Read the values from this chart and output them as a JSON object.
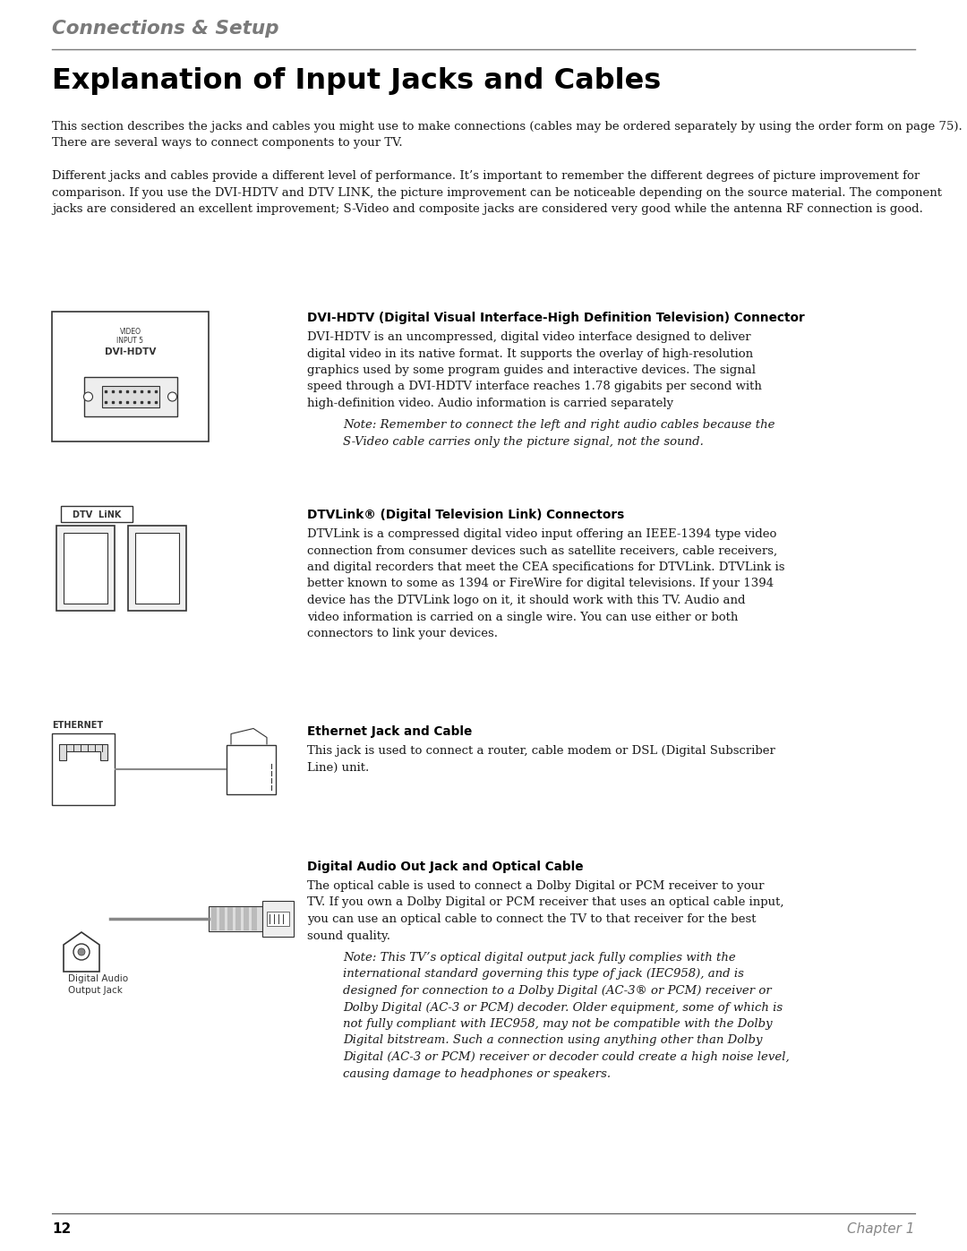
{
  "bg_color": "#ffffff",
  "header_color": "#7a7a7a",
  "header_text": "Connections & Setup",
  "page_num": "12",
  "chapter_text": "Chapter 1",
  "title": "Explanation of Input Jacks and Cables",
  "para1": "This section describes the jacks and cables you might use to make connections (cables may be ordered separately by using the order form on page 75). There are several ways to connect components to your TV.",
  "para2": "Different jacks and cables provide a different level of performance. It’s important to remember the different degrees of picture improvement for comparison. If you use the DVI-HDTV and DTV LINK, the picture improvement can be noticeable depending on the source material. The component jacks are considered an excellent improvement; S-Video and composite jacks are considered very good while the antenna RF connection is good.",
  "section1_title": "DVI-HDTV (Digital Visual Interface-High Definition Television) Connector",
  "section1_body": "DVI-HDTV is an uncompressed, digital video interface designed to deliver\ndigital video in its native format. It supports the overlay of high-resolution\ngraphics used by some program guides and interactive devices. The signal\nspeed through a DVI-HDTV interface reaches 1.78 gigabits per second with\nhigh-definition video. Audio information is carried separately",
  "section1_note": "Note: Remember to connect the left and right audio cables because the\nS-Video cable carries only the picture signal, not the sound.",
  "section2_title": "DTVLink® (Digital Television Link) Connectors",
  "section2_body": "DTVLink is a compressed digital video input offering an IEEE-1394 type video\nconnection from consumer devices such as satellite receivers, cable receivers,\nand digital recorders that meet the CEA specifications for DTVLink. DTVLink is\nbetter known to some as 1394 or FireWire for digital televisions. If your 1394\ndevice has the DTVLink logo on it, it should work with this TV. Audio and\nvideo information is carried on a single wire. You can use either or both\nconnectors to link your devices.",
  "section3_title": "Ethernet Jack and Cable",
  "section3_body": "This jack is used to connect a router, cable modem or DSL (Digital Subscriber\nLine) unit.",
  "section4_title": "Digital Audio Out Jack and Optical Cable",
  "section4_body": "The optical cable is used to connect a Dolby Digital or PCM receiver to your\nTV. If you own a Dolby Digital or PCM receiver that uses an optical cable input,\nyou can use an optical cable to connect the TV to that receiver for the best\nsound quality.",
  "section4_note": "Note: This TV’s optical digital output jack fully complies with the\ninternational standard governing this type of jack (IEC958), and is\ndesigned for connection to a Dolby Digital (AC-3® or PCM) receiver or\nDolby Digital (AC-3 or PCM) decoder. Older equipment, some of which is\nnot fully compliant with IEC958, may not be compatible with the Dolby\nDigital bitstream. Such a connection using anything other than Dolby\nDigital (AC-3 or PCM) receiver or decoder could create a high noise level,\ncausing damage to headphones or speakers.",
  "text_color": "#1a1a1a",
  "line_color": "#555555",
  "img_color": "#333333"
}
